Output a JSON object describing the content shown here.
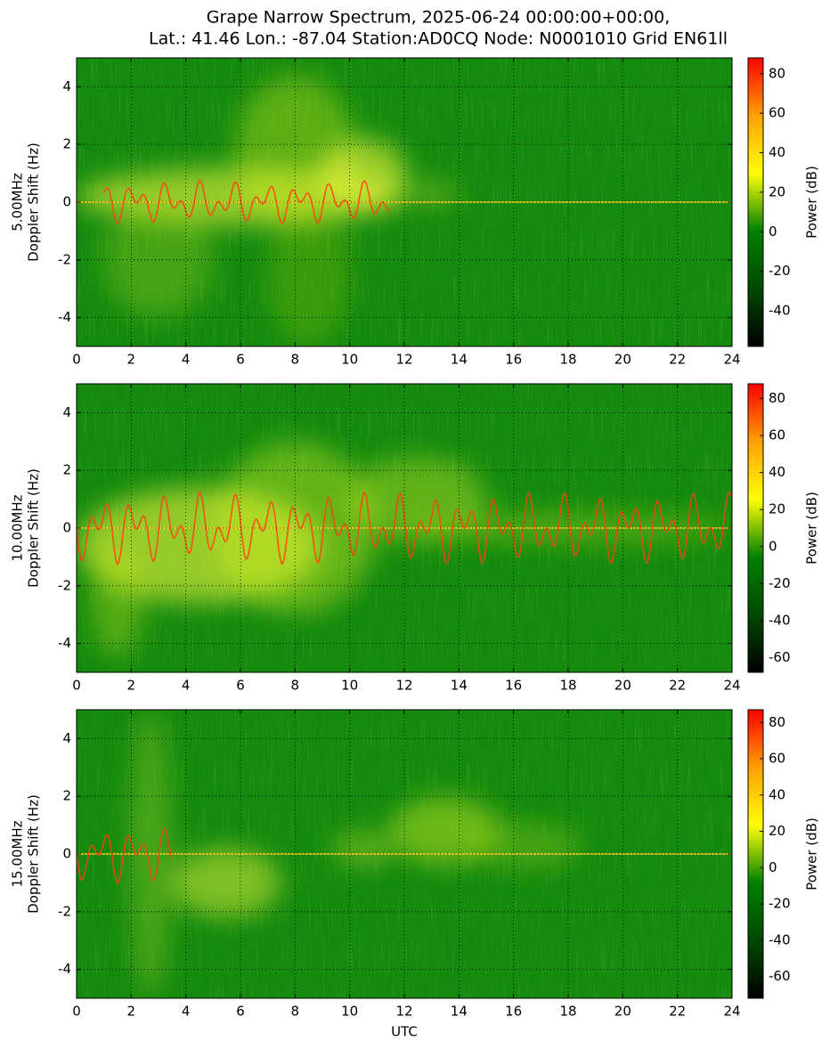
{
  "title": [
    "Grape Narrow Spectrum, 2025-06-24 00:00:00+00:00,",
    "Lat.: 41.46 Lon.: -87.04 Station:AD0CQ Node: N0001010 Grid EN61ll"
  ],
  "chart_data": [
    {
      "type": "spectrogram",
      "ylabel": [
        "5.00MHz",
        "Doppler Shift (Hz)"
      ],
      "xlim": [
        0,
        24
      ],
      "xticks": [
        0,
        2,
        4,
        6,
        8,
        10,
        12,
        14,
        16,
        18,
        20,
        22,
        24
      ],
      "ylim": [
        -5,
        5
      ],
      "yticks": [
        -4,
        -2,
        0,
        2,
        4
      ],
      "grid": true,
      "colorbar_label": "Power (dB)",
      "clim": [
        -58,
        88
      ],
      "cticks": [
        -40,
        -20,
        0,
        20,
        40,
        60,
        80
      ],
      "colormap": [
        "#000000",
        "#004a00",
        "#008000",
        "#ffff00",
        "#ffa000",
        "#ff0000"
      ]
    },
    {
      "type": "spectrogram",
      "ylabel": [
        "10.00MHz",
        "Doppler Shift (Hz)"
      ],
      "xlim": [
        0,
        24
      ],
      "xticks": [
        0,
        2,
        4,
        6,
        8,
        10,
        12,
        14,
        16,
        18,
        20,
        22,
        24
      ],
      "ylim": [
        -5,
        5
      ],
      "yticks": [
        -4,
        -2,
        0,
        2,
        4
      ],
      "grid": true,
      "colorbar_label": "Power (dB)",
      "clim": [
        -68,
        88
      ],
      "cticks": [
        -60,
        -40,
        -20,
        0,
        20,
        40,
        60,
        80
      ],
      "colormap": [
        "#000000",
        "#004a00",
        "#008000",
        "#ffff00",
        "#ffa000",
        "#ff0000"
      ]
    },
    {
      "type": "spectrogram",
      "ylabel": [
        "15.00MHz",
        "Doppler Shift (Hz)"
      ],
      "xlabel": "UTC",
      "xlim": [
        0,
        24
      ],
      "xticks": [
        0,
        2,
        4,
        6,
        8,
        10,
        12,
        14,
        16,
        18,
        20,
        22,
        24
      ],
      "ylim": [
        -5,
        5
      ],
      "yticks": [
        -4,
        -2,
        0,
        2,
        4
      ],
      "grid": true,
      "colorbar_label": "Power (dB)",
      "clim": [
        -72,
        87
      ],
      "cticks": [
        -60,
        -40,
        -20,
        0,
        20,
        40,
        60,
        80
      ],
      "colormap": [
        "#000000",
        "#004a00",
        "#008000",
        "#ffff00",
        "#ffa000",
        "#ff0000"
      ]
    }
  ]
}
